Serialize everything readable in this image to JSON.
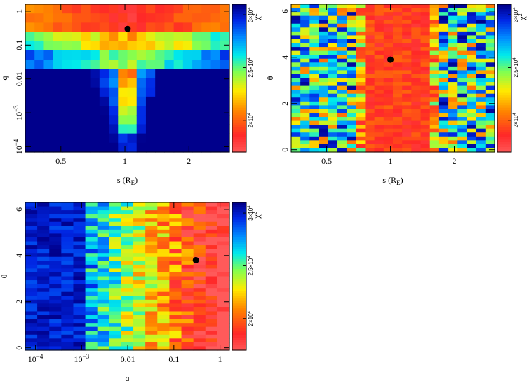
{
  "chart_data": [
    {
      "type": "heatmap",
      "xlabel": "s (R_E)",
      "ylabel": "q",
      "x_scale": "log",
      "y_scale": "log",
      "xlim": [
        0.34,
        3.1
      ],
      "ylim": [
        7e-05,
        1.6
      ],
      "x_ticks": [
        {
          "value": 0.5,
          "label": "0.5"
        },
        {
          "value": 1,
          "label": "1"
        },
        {
          "value": 2,
          "label": "2"
        }
      ],
      "y_ticks": [
        {
          "value": 0.0001,
          "label": "10^-4"
        },
        {
          "value": 0.001,
          "label": "10^-3"
        },
        {
          "value": 0.01,
          "label": "0.01"
        },
        {
          "value": 0.1,
          "label": "0.1"
        },
        {
          "value": 1,
          "label": "1"
        }
      ],
      "best_fit": {
        "x": 1.03,
        "y": 0.3
      },
      "colorbar": {
        "label": "χ²",
        "vmin": 17000,
        "vmax": 31000,
        "ticks": [
          {
            "value": 20000,
            "label": "2×10^4"
          },
          {
            "value": 25000,
            "label": "2.5×10^4"
          },
          {
            "value": 30000,
            "label": "3×10^4"
          }
        ]
      }
    },
    {
      "type": "heatmap",
      "xlabel": "s (R_E)",
      "ylabel": "θ",
      "x_scale": "log",
      "y_scale": "linear",
      "xlim": [
        0.34,
        3.1
      ],
      "ylim": [
        -0.1,
        6.3
      ],
      "x_ticks": [
        {
          "value": 0.5,
          "label": "0.5"
        },
        {
          "value": 1,
          "label": "1"
        },
        {
          "value": 2,
          "label": "2"
        }
      ],
      "y_ticks": [
        {
          "value": 0,
          "label": "0"
        },
        {
          "value": 2,
          "label": "2"
        },
        {
          "value": 4,
          "label": "4"
        },
        {
          "value": 6,
          "label": "6"
        }
      ],
      "best_fit": {
        "x": 1.0,
        "y": 3.9
      },
      "colorbar": {
        "label": "χ²",
        "vmin": 17000,
        "vmax": 31000,
        "ticks": [
          {
            "value": 20000,
            "label": "2×10^4"
          },
          {
            "value": 25000,
            "label": "2.5×10^4"
          },
          {
            "value": 30000,
            "label": "3×10^4"
          }
        ]
      }
    },
    {
      "type": "heatmap",
      "xlabel": "q",
      "ylabel": "θ",
      "x_scale": "log",
      "y_scale": "linear",
      "xlim": [
        6e-05,
        1.6
      ],
      "ylim": [
        -0.1,
        6.3
      ],
      "x_ticks": [
        {
          "value": 0.0001,
          "label": "10^-4"
        },
        {
          "value": 0.001,
          "label": "10^-3"
        },
        {
          "value": 0.01,
          "label": "0.01"
        },
        {
          "value": 0.1,
          "label": "0.1"
        },
        {
          "value": 1,
          "label": "1"
        }
      ],
      "y_ticks": [
        {
          "value": 0,
          "label": "0"
        },
        {
          "value": 2,
          "label": "2"
        },
        {
          "value": 4,
          "label": "4"
        },
        {
          "value": 6,
          "label": "6"
        }
      ],
      "best_fit": {
        "x": 0.3,
        "y": 3.8
      },
      "colorbar": {
        "label": "χ²",
        "vmin": 17000,
        "vmax": 31000,
        "ticks": [
          {
            "value": 20000,
            "label": "2×10^4"
          },
          {
            "value": 25000,
            "label": "2.5×10^4"
          },
          {
            "value": 30000,
            "label": "3×10^4"
          }
        ]
      }
    }
  ]
}
